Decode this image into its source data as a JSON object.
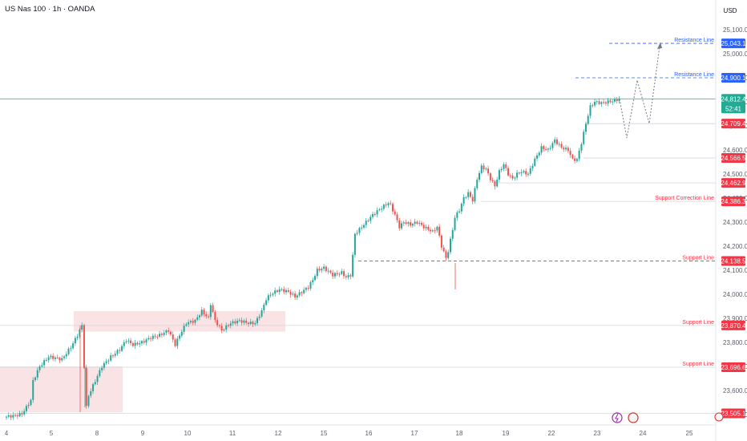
{
  "header": {
    "title": "US Nas 100 · 1h · OANDA",
    "currency": "USD"
  },
  "colors": {
    "up": "#26a69a",
    "down": "#ef5350",
    "resistance": "#2962ff",
    "support": "#f23645",
    "last_price": "#22ab94",
    "zone": "#f8d7da"
  },
  "chart_data": {
    "type": "candlestick",
    "x_tick_labels": [
      "4",
      "5",
      "8",
      "9",
      "10",
      "11",
      "12",
      "15",
      "16",
      "17",
      "18",
      "19",
      "22",
      "23",
      "24",
      "25"
    ],
    "y_tick_labels": [
      "25,100.0",
      "25,000.0",
      "24,900.0",
      "24,800.0",
      "24,700.0",
      "24,600.0",
      "24,500.0",
      "24,400.0",
      "24,300.0",
      "24,200.0",
      "24,100.0",
      "24,000.0",
      "23,900.0",
      "23,800.0",
      "23,700.0",
      "23,600.0",
      "23,500.0"
    ],
    "ylim": [
      23490,
      25160
    ],
    "price_path": [
      [
        0,
        23490
      ],
      [
        5,
        23496
      ],
      [
        8,
        23503
      ],
      [
        10,
        23530
      ],
      [
        12,
        23560
      ],
      [
        13,
        23640
      ],
      [
        16,
        23700
      ],
      [
        20,
        23740
      ],
      [
        26,
        23730
      ],
      [
        30,
        23780
      ],
      [
        33,
        23830
      ],
      [
        35,
        23870
      ],
      [
        36,
        23700
      ],
      [
        37,
        23530
      ],
      [
        38,
        23580
      ],
      [
        40,
        23620
      ],
      [
        44,
        23700
      ],
      [
        48,
        23740
      ],
      [
        52,
        23770
      ],
      [
        55,
        23810
      ],
      [
        58,
        23790
      ],
      [
        62,
        23800
      ],
      [
        66,
        23820
      ],
      [
        70,
        23830
      ],
      [
        74,
        23850
      ],
      [
        77,
        23790
      ],
      [
        79,
        23830
      ],
      [
        82,
        23880
      ],
      [
        86,
        23890
      ],
      [
        89,
        23930
      ],
      [
        92,
        23900
      ],
      [
        93,
        23960
      ],
      [
        95,
        23890
      ],
      [
        98,
        23850
      ],
      [
        102,
        23880
      ],
      [
        106,
        23890
      ],
      [
        110,
        23880
      ],
      [
        113,
        23880
      ],
      [
        116,
        23930
      ],
      [
        118,
        23980
      ],
      [
        120,
        24000
      ],
      [
        124,
        24020
      ],
      [
        128,
        24010
      ],
      [
        131,
        23990
      ],
      [
        134,
        24010
      ],
      [
        137,
        24030
      ],
      [
        139,
        24060
      ],
      [
        141,
        24100
      ],
      [
        144,
        24110
      ],
      [
        148,
        24080
      ],
      [
        152,
        24090
      ],
      [
        154,
        24070
      ],
      [
        156,
        24080
      ],
      [
        157,
        24160
      ],
      [
        158,
        24250
      ],
      [
        160,
        24270
      ],
      [
        163,
        24300
      ],
      [
        166,
        24330
      ],
      [
        170,
        24360
      ],
      [
        173,
        24380
      ],
      [
        174,
        24370
      ],
      [
        176,
        24330
      ],
      [
        178,
        24280
      ],
      [
        180,
        24300
      ],
      [
        183,
        24290
      ],
      [
        186,
        24300
      ],
      [
        189,
        24280
      ],
      [
        191,
        24270
      ],
      [
        193,
        24260
      ],
      [
        195,
        24280
      ],
      [
        197,
        24200
      ],
      [
        199,
        24150
      ],
      [
        200,
        24180
      ],
      [
        202,
        24270
      ],
      [
        203,
        24320
      ],
      [
        205,
        24350
      ],
      [
        207,
        24400
      ],
      [
        209,
        24420
      ],
      [
        211,
        24390
      ],
      [
        213,
        24480
      ],
      [
        215,
        24530
      ],
      [
        217,
        24520
      ],
      [
        219,
        24480
      ],
      [
        221,
        24450
      ],
      [
        223,
        24510
      ],
      [
        225,
        24540
      ],
      [
        227,
        24500
      ],
      [
        229,
        24480
      ],
      [
        231,
        24500
      ],
      [
        233,
        24510
      ],
      [
        236,
        24500
      ],
      [
        239,
        24560
      ],
      [
        242,
        24610
      ],
      [
        245,
        24600
      ],
      [
        248,
        24640
      ],
      [
        251,
        24610
      ],
      [
        254,
        24600
      ],
      [
        256,
        24560
      ],
      [
        258,
        24560
      ],
      [
        260,
        24630
      ],
      [
        262,
        24710
      ],
      [
        264,
        24780
      ],
      [
        266,
        24800
      ],
      [
        269,
        24795
      ],
      [
        272,
        24800
      ],
      [
        275,
        24805
      ],
      [
        277,
        24812
      ]
    ],
    "levels": [
      {
        "label": "Resistance Line",
        "value": 25043.1,
        "tag": "25,043.1",
        "kind": "resistance"
      },
      {
        "label": "Resistance Line",
        "value": 24900.1,
        "tag": "24,900.1",
        "kind": "resistance"
      },
      {
        "label": "",
        "value": 24812.4,
        "tag": "24,812.4",
        "kind": "last"
      },
      {
        "label": "",
        "value": 24709.4,
        "tag": "24,709.4",
        "kind": "support-tag"
      },
      {
        "label": "",
        "value": 24566.5,
        "tag": "24,566.5",
        "kind": "support-tag"
      },
      {
        "label": "",
        "value": 24462.9,
        "tag": "24,462.9",
        "kind": "support-tag"
      },
      {
        "label": "Support Correction Line",
        "value": 24386.3,
        "tag": "24,386.3",
        "kind": "support"
      },
      {
        "label": "Support Line",
        "value": 24138.5,
        "tag": "24,138.5",
        "kind": "support"
      },
      {
        "label": "Support Line",
        "value": 23870.4,
        "tag": "23,870.4",
        "kind": "support"
      },
      {
        "label": "Support Line",
        "value": 23696.6,
        "tag": "23,696.6",
        "kind": "support"
      },
      {
        "label": "",
        "value": 23505.1,
        "tag": "23,505.1",
        "kind": "support-tag"
      }
    ],
    "countdown": "52:41",
    "projection": [
      [
        24812,
        24650
      ],
      [
        24890,
        24700
      ],
      [
        24810,
        24710
      ],
      [
        25030,
        25043
      ]
    ]
  }
}
